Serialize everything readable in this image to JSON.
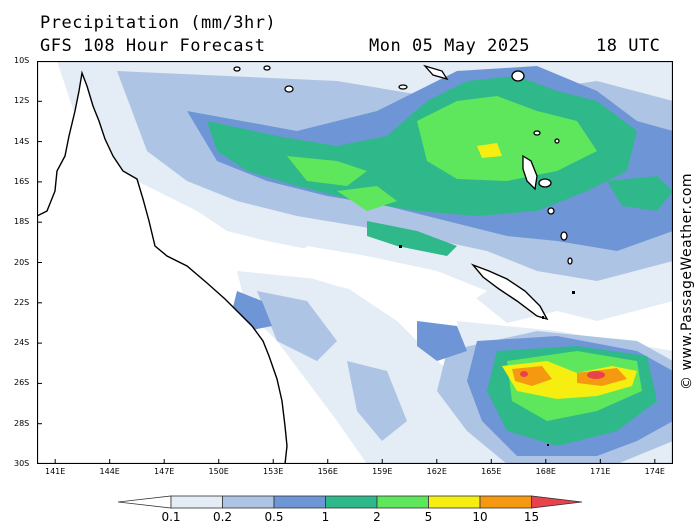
{
  "header": {
    "title": "Precipitation (mm/3hr)",
    "forecast": "GFS 108 Hour Forecast",
    "date": "Mon 05 May 2025",
    "time": "18 UTC"
  },
  "watermark": "© www.PassageWeather.com",
  "axes": {
    "lat_labels": [
      "10S",
      "12S",
      "14S",
      "16S",
      "18S",
      "20S",
      "22S",
      "24S",
      "26S",
      "28S",
      "30S"
    ],
    "lon_labels": [
      "141E",
      "144E",
      "147E",
      "150E",
      "153E",
      "156E",
      "159E",
      "162E",
      "165E",
      "168E",
      "171E",
      "174E"
    ],
    "lat_range": [
      -30,
      -10
    ],
    "lon_range": [
      140,
      175
    ]
  },
  "legend": {
    "labels": [
      "0.1",
      "0.2",
      "0.5",
      "1",
      "2",
      "5",
      "10",
      "15"
    ],
    "colors": [
      "#ffffff",
      "#e4ecf6",
      "#aec4e4",
      "#6e96d6",
      "#2fb88a",
      "#5ee65c",
      "#f5ee10",
      "#f59a10",
      "#e8434c"
    ]
  },
  "map_colors": {
    "land": "#ffffff",
    "coast": "#000000",
    "frame": "#000000"
  }
}
